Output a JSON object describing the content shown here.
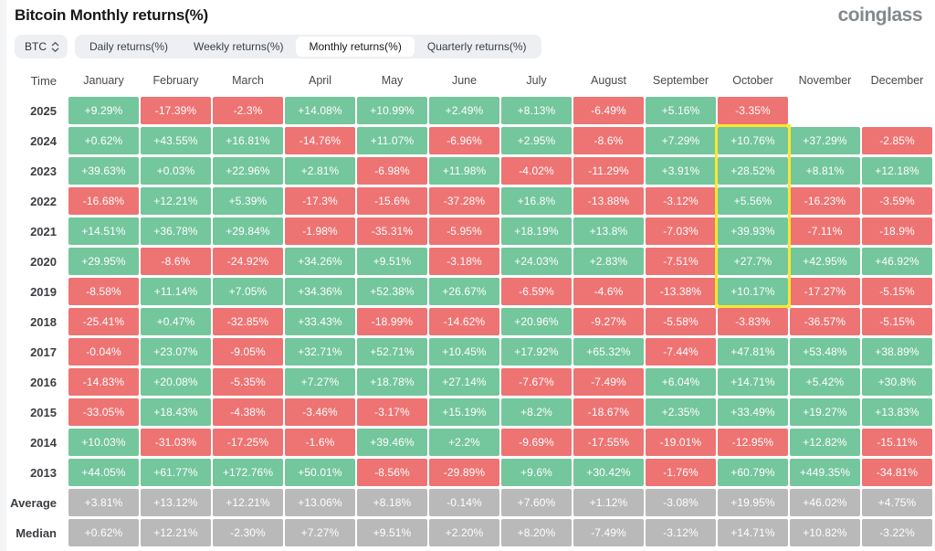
{
  "page": {
    "title": "Bitcoin Monthly returns(%)",
    "logo": "coinglass"
  },
  "controls": {
    "symbol_selector": {
      "label": "BTC"
    },
    "tabs": [
      {
        "label": "Daily returns(%)",
        "active": false
      },
      {
        "label": "Weekly returns(%)",
        "active": false
      },
      {
        "label": "Monthly returns(%)",
        "active": true
      },
      {
        "label": "Quarterly returns(%)",
        "active": false
      }
    ]
  },
  "colors": {
    "positive": "#74c69c",
    "negative": "#ee7373",
    "stat": "#b9b9b9",
    "highlight": "#fce72f"
  },
  "chart_data": {
    "type": "table",
    "title": "Bitcoin Monthly returns(%)",
    "columns": [
      "Time",
      "January",
      "February",
      "March",
      "April",
      "May",
      "June",
      "July",
      "August",
      "September",
      "October",
      "November",
      "December"
    ],
    "rows": [
      {
        "label": "2025",
        "type": "year",
        "values": [
          "+9.29%",
          "-17.39%",
          "-2.3%",
          "+14.08%",
          "+10.99%",
          "+2.49%",
          "+8.13%",
          "-6.49%",
          "+5.16%",
          "-3.35%",
          null,
          null
        ]
      },
      {
        "label": "2024",
        "type": "year",
        "values": [
          "+0.62%",
          "+43.55%",
          "+16.81%",
          "-14.76%",
          "+11.07%",
          "-6.96%",
          "+2.95%",
          "-8.6%",
          "+7.29%",
          "+10.76%",
          "+37.29%",
          "-2.85%"
        ]
      },
      {
        "label": "2023",
        "type": "year",
        "values": [
          "+39.63%",
          "+0.03%",
          "+22.96%",
          "+2.81%",
          "-6.98%",
          "+11.98%",
          "-4.02%",
          "-11.29%",
          "+3.91%",
          "+28.52%",
          "+8.81%",
          "+12.18%"
        ]
      },
      {
        "label": "2022",
        "type": "year",
        "values": [
          "-16.68%",
          "+12.21%",
          "+5.39%",
          "-17.3%",
          "-15.6%",
          "-37.28%",
          "+16.8%",
          "-13.88%",
          "-3.12%",
          "+5.56%",
          "-16.23%",
          "-3.59%"
        ]
      },
      {
        "label": "2021",
        "type": "year",
        "values": [
          "+14.51%",
          "+36.78%",
          "+29.84%",
          "-1.98%",
          "-35.31%",
          "-5.95%",
          "+18.19%",
          "+13.8%",
          "-7.03%",
          "+39.93%",
          "-7.11%",
          "-18.9%"
        ]
      },
      {
        "label": "2020",
        "type": "year",
        "values": [
          "+29.95%",
          "-8.6%",
          "-24.92%",
          "+34.26%",
          "+9.51%",
          "-3.18%",
          "+24.03%",
          "+2.83%",
          "-7.51%",
          "+27.7%",
          "+42.95%",
          "+46.92%"
        ]
      },
      {
        "label": "2019",
        "type": "year",
        "values": [
          "-8.58%",
          "+11.14%",
          "+7.05%",
          "+34.36%",
          "+52.38%",
          "+26.67%",
          "-6.59%",
          "-4.6%",
          "-13.38%",
          "+10.17%",
          "-17.27%",
          "-5.15%"
        ]
      },
      {
        "label": "2018",
        "type": "year",
        "values": [
          "-25.41%",
          "+0.47%",
          "-32.85%",
          "+33.43%",
          "-18.99%",
          "-14.62%",
          "+20.96%",
          "-9.27%",
          "-5.58%",
          "-3.83%",
          "-36.57%",
          "-5.15%"
        ]
      },
      {
        "label": "2017",
        "type": "year",
        "values": [
          "-0.04%",
          "+23.07%",
          "-9.05%",
          "+32.71%",
          "+52.71%",
          "+10.45%",
          "+17.92%",
          "+65.32%",
          "-7.44%",
          "+47.81%",
          "+53.48%",
          "+38.89%"
        ]
      },
      {
        "label": "2016",
        "type": "year",
        "values": [
          "-14.83%",
          "+20.08%",
          "-5.35%",
          "+7.27%",
          "+18.78%",
          "+27.14%",
          "-7.67%",
          "-7.49%",
          "+6.04%",
          "+14.71%",
          "+5.42%",
          "+30.8%"
        ]
      },
      {
        "label": "2015",
        "type": "year",
        "values": [
          "-33.05%",
          "+18.43%",
          "-4.38%",
          "-3.46%",
          "-3.17%",
          "+15.19%",
          "+8.2%",
          "-18.67%",
          "+2.35%",
          "+33.49%",
          "+19.27%",
          "+13.83%"
        ]
      },
      {
        "label": "2014",
        "type": "year",
        "values": [
          "+10.03%",
          "-31.03%",
          "-17.25%",
          "-1.6%",
          "+39.46%",
          "+2.2%",
          "-9.69%",
          "-17.55%",
          "-19.01%",
          "-12.95%",
          "+12.82%",
          "-15.11%"
        ]
      },
      {
        "label": "2013",
        "type": "year",
        "values": [
          "+44.05%",
          "+61.77%",
          "+172.76%",
          "+50.01%",
          "-8.56%",
          "-29.89%",
          "+9.6%",
          "+30.42%",
          "-1.76%",
          "+60.79%",
          "+449.35%",
          "-34.81%"
        ]
      },
      {
        "label": "Average",
        "type": "stat",
        "values": [
          "+3.81%",
          "+13.12%",
          "+12.21%",
          "+13.06%",
          "+8.18%",
          "-0.14%",
          "+7.60%",
          "+1.12%",
          "-3.08%",
          "+19.95%",
          "+46.02%",
          "+4.75%"
        ]
      },
      {
        "label": "Median",
        "type": "stat",
        "values": [
          "+0.62%",
          "+12.21%",
          "-2.30%",
          "+7.27%",
          "+9.51%",
          "+2.20%",
          "+8.20%",
          "-7.49%",
          "-3.12%",
          "+14.71%",
          "+10.82%",
          "-3.22%"
        ]
      }
    ],
    "highlight": {
      "column": "October",
      "from_row": "2024",
      "to_row": "2019"
    }
  }
}
